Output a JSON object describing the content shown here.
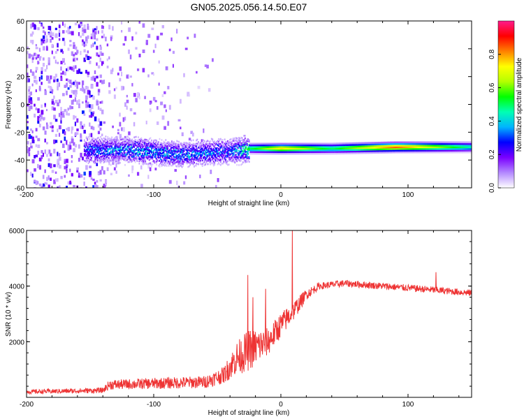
{
  "title": "GN05.2025.056.14.50.E07",
  "chart_data": [
    {
      "type": "heatmap",
      "xlabel": "Height of straight line (km)",
      "ylabel": "Frequency (Hz)",
      "xlim": [
        -200,
        150
      ],
      "ylim": [
        -60,
        60
      ],
      "xticks": [
        "-200",
        "-100",
        "0",
        "100"
      ],
      "yticks": [
        "60",
        "40",
        "20",
        "0",
        "-20",
        "-40",
        "-60"
      ],
      "colorbar": {
        "label": "Normalized spectral amplitude",
        "range": [
          0,
          1
        ],
        "ticks": [
          "0.0",
          "0.2",
          "0.4",
          "0.6",
          "0.8"
        ],
        "colors": [
          "#ffffff",
          "#b388ff",
          "#7a00ff",
          "#0000ff",
          "#00b4ff",
          "#00ffb4",
          "#00ff00",
          "#b4ff00",
          "#ffff00",
          "#ff8000",
          "#ff0000",
          "#ff1a8c"
        ]
      },
      "features": {
        "noise_region_x": [
          -200,
          -140
        ],
        "sparse_noise_x": [
          -140,
          -50
        ],
        "signal_track": [
          {
            "x": -155,
            "freq": -32,
            "amp": 0.3
          },
          {
            "x": -120,
            "freq": -32,
            "amp": 0.35
          },
          {
            "x": -80,
            "freq": -35,
            "amp": 0.35
          },
          {
            "x": -40,
            "freq": -33,
            "amp": 0.3
          },
          {
            "x": -25,
            "freq": -31,
            "amp": 0.5
          },
          {
            "x": 0,
            "freq": -31,
            "amp": 0.75
          },
          {
            "x": 40,
            "freq": -31,
            "amp": 0.5
          },
          {
            "x": 90,
            "freq": -30,
            "amp": 0.85
          },
          {
            "x": 150,
            "freq": -30,
            "amp": 0.45
          }
        ]
      }
    },
    {
      "type": "line",
      "xlabel": "Height of straight line (km)",
      "ylabel": "SNR (10 * v/v)",
      "xlim": [
        -200,
        150
      ],
      "ylim": [
        0,
        6000
      ],
      "xticks": [
        "-200",
        "-100",
        "0",
        "100"
      ],
      "yticks": [
        "6000",
        "4000",
        "2000"
      ],
      "series": [
        {
          "color": "#ee3333",
          "envelope": [
            {
              "x": -200,
              "y": 200,
              "spread": 150
            },
            {
              "x": -140,
              "y": 250,
              "spread": 200
            },
            {
              "x": -135,
              "y": 450,
              "spread": 350
            },
            {
              "x": -100,
              "y": 500,
              "spread": 400
            },
            {
              "x": -60,
              "y": 550,
              "spread": 450
            },
            {
              "x": -45,
              "y": 800,
              "spread": 600
            },
            {
              "x": -35,
              "y": 1400,
              "spread": 1200
            },
            {
              "x": -25,
              "y": 1700,
              "spread": 1500
            },
            {
              "x": -10,
              "y": 2000,
              "spread": 1000
            },
            {
              "x": 0,
              "y": 2600,
              "spread": 900
            },
            {
              "x": 10,
              "y": 3100,
              "spread": 700
            },
            {
              "x": 20,
              "y": 3700,
              "spread": 400
            },
            {
              "x": 30,
              "y": 4000,
              "spread": 250
            },
            {
              "x": 50,
              "y": 4100,
              "spread": 250
            },
            {
              "x": 80,
              "y": 4000,
              "spread": 250
            },
            {
              "x": 110,
              "y": 3900,
              "spread": 250
            },
            {
              "x": 150,
              "y": 3750,
              "spread": 250
            }
          ],
          "spikes": [
            {
              "x": 9,
              "y": 6000
            },
            {
              "x": -26,
              "y": 4400
            },
            {
              "x": -22,
              "y": 3600
            },
            {
              "x": -12,
              "y": 3900
            },
            {
              "x": 122,
              "y": 4500
            }
          ]
        }
      ]
    }
  ]
}
